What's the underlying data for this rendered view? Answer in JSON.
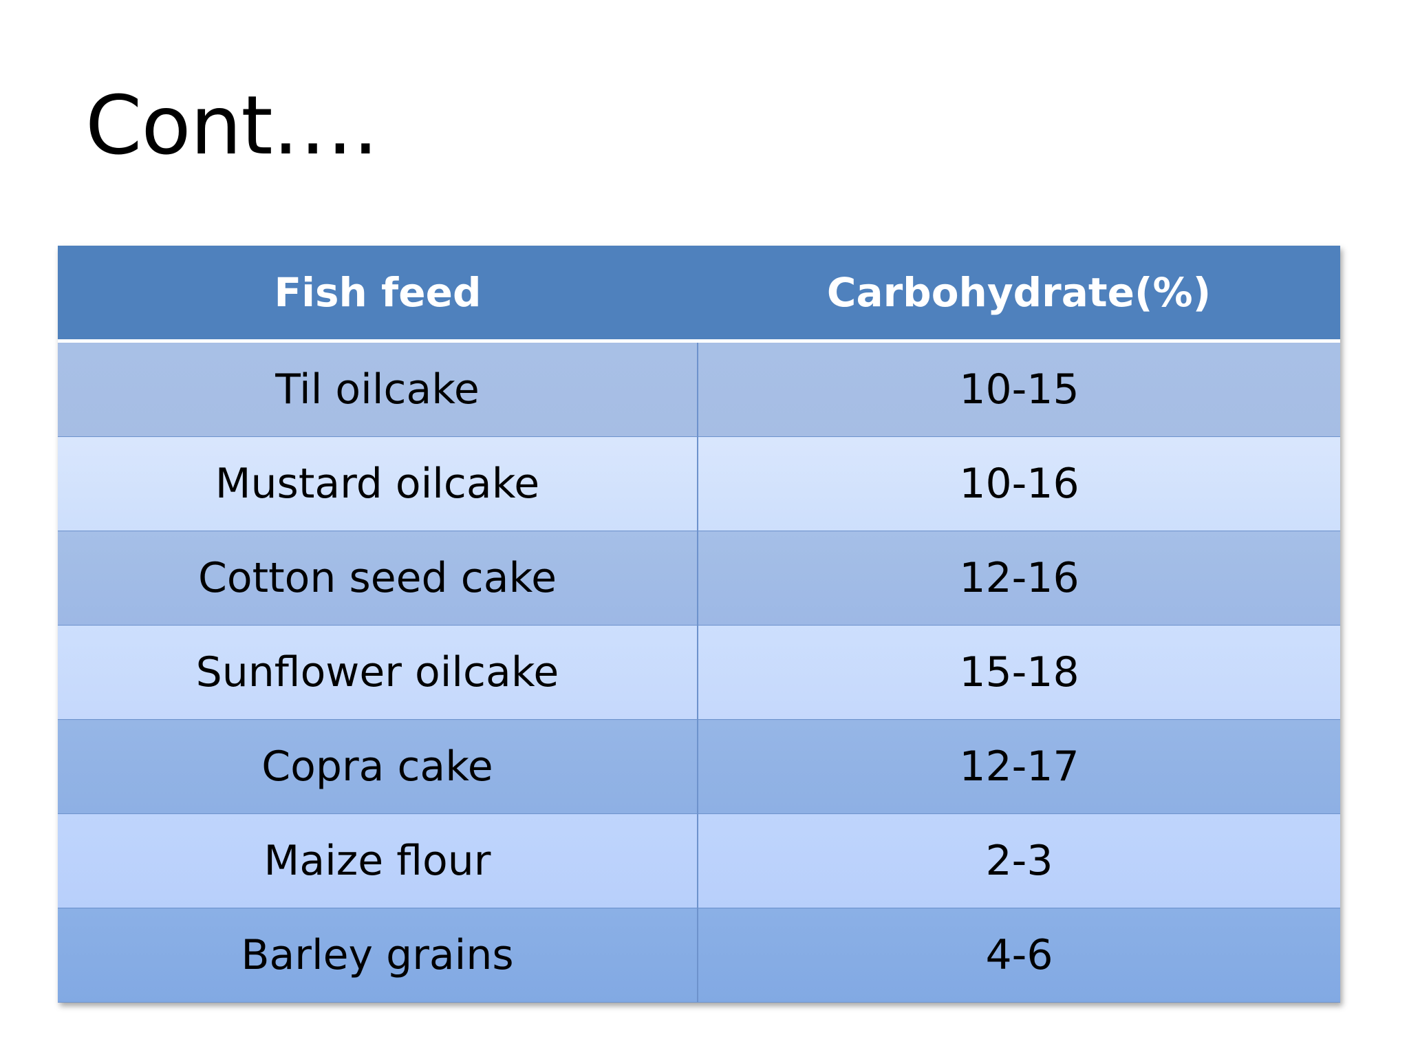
{
  "slide": {
    "title": "Cont…."
  },
  "table": {
    "headers": [
      "Fish feed",
      "Carbohydrate(%)"
    ],
    "rows": [
      [
        "Til oilcake",
        "10-15"
      ],
      [
        "Mustard oilcake",
        "10-16"
      ],
      [
        "Cotton seed cake",
        "12-16"
      ],
      [
        "Sunflower oilcake",
        "15-18"
      ],
      [
        "Copra cake",
        "12-17"
      ],
      [
        "Maize flour",
        "2-3"
      ],
      [
        "Barley grains",
        "4-6"
      ]
    ]
  },
  "colors": {
    "header_background": "#4f81bd",
    "header_text": "#ffffff",
    "row_odd": "#a6bde4",
    "row_even": "#cddffc",
    "grid_line": "#6d92cc"
  }
}
